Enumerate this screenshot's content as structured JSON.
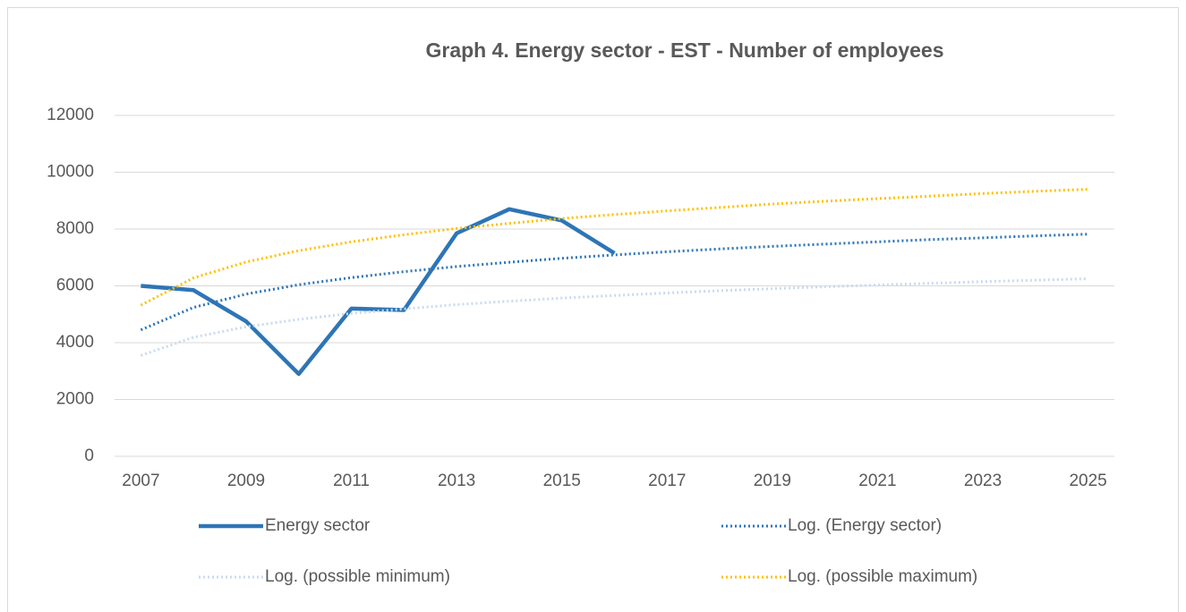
{
  "chart_data": {
    "type": "line",
    "title": "Graph 4. Energy sector - EST - Number of employees",
    "x": [
      2007,
      2008,
      2009,
      2010,
      2011,
      2012,
      2013,
      2014,
      2015,
      2016,
      2017,
      2018,
      2019,
      2020,
      2021,
      2022,
      2023,
      2024,
      2025
    ],
    "xlim": [
      2006.5,
      2025.5
    ],
    "xticks": [
      2007,
      2009,
      2011,
      2013,
      2015,
      2017,
      2019,
      2021,
      2023,
      2025
    ],
    "ylim": [
      0,
      12000
    ],
    "yticks": [
      0,
      2000,
      4000,
      6000,
      8000,
      10000,
      12000
    ],
    "grid": true,
    "legend": "bottom",
    "series": [
      {
        "name": "Energy sector",
        "color": "#2e75b6",
        "style": "solid",
        "values": [
          6000,
          5850,
          4750,
          2900,
          5200,
          5150,
          7850,
          8700,
          8300,
          7150,
          null,
          null,
          null,
          null,
          null,
          null,
          null,
          null,
          null
        ]
      },
      {
        "name": "Log. (Energy sector)",
        "color": "#2e75b6",
        "style": "dotted",
        "values": [
          4450,
          5240,
          5710,
          6040,
          6290,
          6500,
          6680,
          6830,
          6970,
          7090,
          7200,
          7300,
          7390,
          7470,
          7550,
          7630,
          7690,
          7760,
          7820
        ]
      },
      {
        "name": "Log. (possible minimum)",
        "color": "#c9daf0",
        "style": "dotted",
        "values": [
          3550,
          4190,
          4560,
          4820,
          5030,
          5190,
          5340,
          5460,
          5570,
          5660,
          5750,
          5830,
          5900,
          5970,
          6030,
          6090,
          6150,
          6200,
          6250
        ]
      },
      {
        "name": "Log. (possible maximum)",
        "color": "#ffc000",
        "style": "dotted",
        "values": [
          5320,
          6280,
          6840,
          7240,
          7550,
          7800,
          8020,
          8200,
          8370,
          8510,
          8640,
          8760,
          8880,
          8980,
          9070,
          9160,
          9250,
          9330,
          9400
        ]
      }
    ]
  }
}
